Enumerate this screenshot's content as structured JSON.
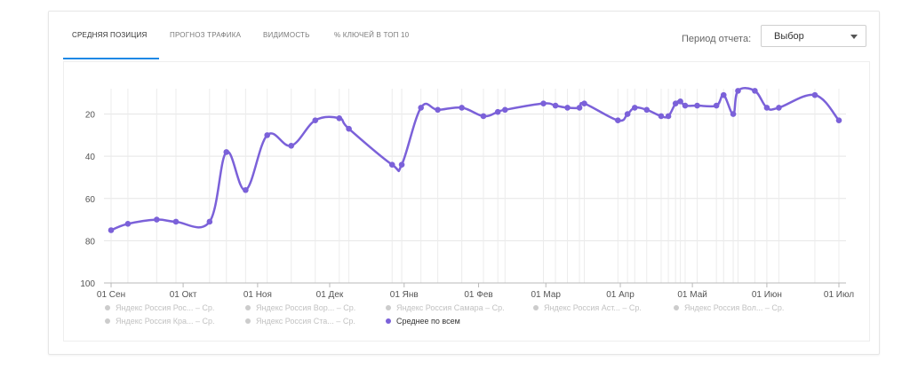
{
  "tabs": [
    {
      "label": "СРЕДНЯЯ ПОЗИЦИЯ",
      "active": true
    },
    {
      "label": "ПРОГНОЗ ТРАФИКА",
      "active": false
    },
    {
      "label": "ВИДИМОСТЬ",
      "active": false
    },
    {
      "label": "% КЛЮЧЕЙ В ТОП 10",
      "active": false
    }
  ],
  "period": {
    "label": "Период отчета:",
    "selected": "Выбор"
  },
  "colors": {
    "series": "#7b61d9",
    "grid": "#e5e5e5",
    "tab_accent": "#1e88e5",
    "inactive_legend": "#cccccc"
  },
  "chart_data": {
    "type": "line",
    "title": "",
    "xlabel": "",
    "ylabel": "",
    "y_inverted": true,
    "ylim": [
      100,
      8
    ],
    "yticks": [
      20,
      40,
      60,
      80,
      100
    ],
    "x_ticks": [
      "01 Сен",
      "01 Окт",
      "01 Ноя",
      "01 Дек",
      "01 Янв",
      "01 Фев",
      "01 Мар",
      "01 Апр",
      "01 Май",
      "01 Июн",
      "01 Июл"
    ],
    "xlim": [
      "2020-09-01",
      "2021-07-01"
    ],
    "legend_position": "bottom",
    "legend": [
      {
        "name": "Яндекс Россия Рос... – Ср.",
        "active": false
      },
      {
        "name": "Яндекс Россия Вор... – Ср.",
        "active": false
      },
      {
        "name": "Яндекс Россия Самара – Ср.",
        "active": false
      },
      {
        "name": "Яндекс Россия Аст... – Ср.",
        "active": false
      },
      {
        "name": "Яндекс Россия Вол... – Ср.",
        "active": false
      },
      {
        "name": "Яндекс Россия Кра... – Ср.",
        "active": false
      },
      {
        "name": "Яндекс Россия Ста... – Ср.",
        "active": false
      },
      {
        "name": "Среднее по всем",
        "active": true
      }
    ],
    "series": [
      {
        "name": "Среднее по всем",
        "points": [
          {
            "date": "2020-09-01",
            "y": 75
          },
          {
            "date": "2020-09-08",
            "y": 72
          },
          {
            "date": "2020-09-20",
            "y": 70
          },
          {
            "date": "2020-09-28",
            "y": 71
          },
          {
            "date": "2020-10-12",
            "y": 71
          },
          {
            "date": "2020-10-19",
            "y": 38
          },
          {
            "date": "2020-10-27",
            "y": 56
          },
          {
            "date": "2020-11-05",
            "y": 30
          },
          {
            "date": "2020-11-15",
            "y": 35
          },
          {
            "date": "2020-11-25",
            "y": 23
          },
          {
            "date": "2020-12-05",
            "y": 22
          },
          {
            "date": "2020-12-09",
            "y": 27
          },
          {
            "date": "2020-12-27",
            "y": 44
          },
          {
            "date": "2020-12-31",
            "y": 44
          },
          {
            "date": "2021-01-08",
            "y": 17
          },
          {
            "date": "2021-01-15",
            "y": 18
          },
          {
            "date": "2021-01-25",
            "y": 17
          },
          {
            "date": "2021-02-03",
            "y": 21
          },
          {
            "date": "2021-02-09",
            "y": 19
          },
          {
            "date": "2021-02-12",
            "y": 18
          },
          {
            "date": "2021-02-28",
            "y": 15
          },
          {
            "date": "2021-03-05",
            "y": 16
          },
          {
            "date": "2021-03-10",
            "y": 17
          },
          {
            "date": "2021-03-15",
            "y": 17
          },
          {
            "date": "2021-03-17",
            "y": 15
          },
          {
            "date": "2021-03-31",
            "y": 23
          },
          {
            "date": "2021-04-04",
            "y": 20
          },
          {
            "date": "2021-04-07",
            "y": 17
          },
          {
            "date": "2021-04-12",
            "y": 18
          },
          {
            "date": "2021-04-18",
            "y": 21
          },
          {
            "date": "2021-04-21",
            "y": 21
          },
          {
            "date": "2021-04-24",
            "y": 15
          },
          {
            "date": "2021-04-26",
            "y": 14
          },
          {
            "date": "2021-04-28",
            "y": 16
          },
          {
            "date": "2021-05-03",
            "y": 16
          },
          {
            "date": "2021-05-11",
            "y": 16
          },
          {
            "date": "2021-05-14",
            "y": 11
          },
          {
            "date": "2021-05-18",
            "y": 20
          },
          {
            "date": "2021-05-20",
            "y": 9
          },
          {
            "date": "2021-05-27",
            "y": 9
          },
          {
            "date": "2021-06-01",
            "y": 17
          },
          {
            "date": "2021-06-06",
            "y": 17
          },
          {
            "date": "2021-06-21",
            "y": 11
          },
          {
            "date": "2021-07-01",
            "y": 23
          }
        ]
      }
    ]
  }
}
